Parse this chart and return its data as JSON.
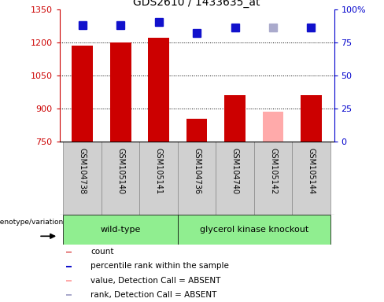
{
  "title": "GDS2610 / 1433635_at",
  "samples": [
    "GSM104738",
    "GSM105140",
    "GSM105141",
    "GSM104736",
    "GSM104740",
    "GSM105142",
    "GSM105144"
  ],
  "bar_values": [
    1185,
    1200,
    1220,
    855,
    960,
    885,
    960
  ],
  "bar_colors": [
    "#cc0000",
    "#cc0000",
    "#cc0000",
    "#cc0000",
    "#cc0000",
    "#ffaaaa",
    "#cc0000"
  ],
  "rank_values": [
    88,
    88,
    90,
    82,
    86,
    86,
    86
  ],
  "rank_colors": [
    "#1111cc",
    "#1111cc",
    "#1111cc",
    "#1111cc",
    "#1111cc",
    "#aaaacc",
    "#1111cc"
  ],
  "ylim_left": [
    750,
    1350
  ],
  "ylim_right": [
    0,
    100
  ],
  "left_ticks": [
    750,
    900,
    1050,
    1200,
    1350
  ],
  "right_ticks": [
    0,
    25,
    50,
    75,
    100
  ],
  "right_tick_labels": [
    "0",
    "25",
    "50",
    "75",
    "100%"
  ],
  "group1_label": "wild-type",
  "group2_label": "glycerol kinase knockout",
  "group1_indices": [
    0,
    1,
    2
  ],
  "group2_indices": [
    3,
    4,
    5,
    6
  ],
  "genotype_label": "genotype/variation",
  "legend_items": [
    {
      "label": "count",
      "color": "#cc0000"
    },
    {
      "label": "percentile rank within the sample",
      "color": "#1111cc"
    },
    {
      "label": "value, Detection Call = ABSENT",
      "color": "#ffaaaa"
    },
    {
      "label": "rank, Detection Call = ABSENT",
      "color": "#aaaacc"
    }
  ],
  "bar_width": 0.55,
  "rank_marker_size": 7,
  "label_gray": "#d0d0d0",
  "group_green": "#90ee90"
}
